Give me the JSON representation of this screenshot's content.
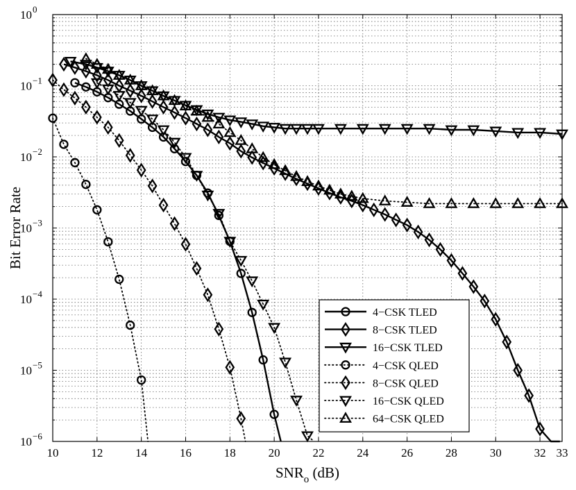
{
  "chart_data": {
    "type": "line",
    "title": "",
    "xlabel": "SNR",
    "xlabel_subscript": "o",
    "xlabel_unit": " (dB)",
    "ylabel": "Bit Error Rate",
    "xlim": [
      10,
      33
    ],
    "ylim": [
      1e-06,
      1
    ],
    "yscale": "log",
    "grid": true,
    "legend_position": "bottom-right",
    "x_ticks": [
      10,
      12,
      14,
      16,
      18,
      20,
      22,
      24,
      26,
      28,
      30,
      32,
      33
    ],
    "x_tick_labels": [
      "10",
      "12",
      "14",
      "16",
      "18",
      "20",
      "22",
      "24",
      "26",
      "28",
      "30",
      "32",
      "33"
    ],
    "y_tick_labels": [
      {
        "value": 1e-06,
        "base": "10",
        "exp": "−6"
      },
      {
        "value": 1e-05,
        "base": "10",
        "exp": "−5"
      },
      {
        "value": 0.0001,
        "base": "10",
        "exp": "−4"
      },
      {
        "value": 0.001,
        "base": "10",
        "exp": "−3"
      },
      {
        "value": 0.01,
        "base": "10",
        "exp": "−2"
      },
      {
        "value": 0.1,
        "base": "10",
        "exp": "−1"
      },
      {
        "value": 1,
        "base": "10",
        "exp": "0"
      }
    ],
    "series": [
      {
        "name": "4−CSK TLED",
        "marker": "circle",
        "line": "solid",
        "x": [
          11.0,
          11.5,
          12.0,
          12.5,
          13.0,
          13.5,
          14.0,
          14.5,
          15.0,
          15.5,
          16.0,
          16.5,
          17.0,
          17.5,
          18.0,
          18.5,
          19.0,
          19.5,
          20.0,
          20.3
        ],
        "y": [
          0.11,
          0.096,
          0.082,
          0.068,
          0.055,
          0.044,
          0.034,
          0.026,
          0.019,
          0.013,
          0.0086,
          0.0055,
          0.0031,
          0.0015,
          0.00065,
          0.00023,
          6.5e-05,
          1.4e-05,
          2.4e-06,
          1e-06
        ]
      },
      {
        "name": "8−CSK TLED",
        "marker": "diamond",
        "line": "solid",
        "x": [
          10.5,
          11.0,
          11.5,
          12.0,
          12.5,
          13.0,
          13.5,
          14.0,
          14.5,
          15.0,
          15.5,
          16.0,
          16.5,
          17.0,
          17.5,
          18.0,
          18.5,
          19.0,
          19.5,
          20.0,
          20.5,
          21.0,
          21.5,
          22.0,
          22.5,
          23.0,
          23.5,
          24.0,
          24.5,
          25.0,
          25.5,
          26.0,
          26.5,
          27.0,
          27.5,
          28.0,
          28.5,
          29.0,
          29.5,
          30.0,
          30.5,
          31.0,
          31.5,
          32.0,
          32.5,
          32.9
        ],
        "y": [
          0.2,
          0.18,
          0.16,
          0.14,
          0.12,
          0.1,
          0.085,
          0.072,
          0.06,
          0.05,
          0.042,
          0.035,
          0.029,
          0.024,
          0.019,
          0.0155,
          0.012,
          0.0098,
          0.0082,
          0.0069,
          0.0058,
          0.0049,
          0.0042,
          0.0036,
          0.0031,
          0.0027,
          0.0024,
          0.0021,
          0.0018,
          0.00155,
          0.0013,
          0.0011,
          0.00088,
          0.00068,
          0.0005,
          0.00035,
          0.00023,
          0.00015,
          9.4e-05,
          5.2e-05,
          2.5e-05,
          1e-05,
          4.4e-06,
          1.5e-06,
          1e-06,
          1e-06
        ]
      },
      {
        "name": "16−CSK TLED",
        "marker": "triangle-down",
        "line": "solid",
        "x": [
          10.8,
          11.5,
          12.0,
          12.5,
          13.0,
          13.5,
          14.0,
          14.5,
          15.0,
          15.5,
          16.0,
          16.5,
          17.0,
          17.5,
          18.0,
          18.5,
          19.0,
          19.5,
          20.0,
          20.5,
          21.0,
          21.5,
          22.0,
          23.0,
          24.0,
          25.0,
          26.0,
          27.0,
          28.0,
          29.0,
          30.0,
          31.0,
          32.0,
          33.0
        ],
        "y": [
          0.22,
          0.2,
          0.18,
          0.16,
          0.14,
          0.12,
          0.1,
          0.085,
          0.072,
          0.062,
          0.053,
          0.046,
          0.04,
          0.036,
          0.033,
          0.031,
          0.029,
          0.027,
          0.026,
          0.025,
          0.025,
          0.025,
          0.025,
          0.025,
          0.025,
          0.025,
          0.025,
          0.025,
          0.024,
          0.024,
          0.023,
          0.022,
          0.022,
          0.021
        ]
      },
      {
        "name": "4−CSK QLED",
        "marker": "circle",
        "line": "dotted",
        "x": [
          10.0,
          10.5,
          11.0,
          11.5,
          12.0,
          12.5,
          13.0,
          13.5,
          14.0,
          14.3
        ],
        "y": [
          0.035,
          0.015,
          0.0083,
          0.0041,
          0.0018,
          0.00064,
          0.00019,
          4.3e-05,
          7.3e-06,
          1e-06
        ]
      },
      {
        "name": "8−CSK QLED",
        "marker": "diamond",
        "line": "dotted",
        "x": [
          10.0,
          10.5,
          11.0,
          11.5,
          12.0,
          12.5,
          13.0,
          13.5,
          14.0,
          14.5,
          15.0,
          15.5,
          16.0,
          16.5,
          17.0,
          17.5,
          18.0,
          18.5,
          18.7
        ],
        "y": [
          0.12,
          0.088,
          0.067,
          0.05,
          0.036,
          0.026,
          0.017,
          0.0105,
          0.0065,
          0.0039,
          0.0021,
          0.00115,
          0.00059,
          0.00027,
          0.000115,
          3.8e-05,
          1.1e-05,
          2.1e-06,
          1e-06
        ]
      },
      {
        "name": "16−CSK QLED",
        "marker": "triangle-down",
        "line": "dotted",
        "x": [
          12.0,
          12.5,
          13.0,
          13.5,
          14.0,
          14.5,
          15.0,
          15.5,
          16.0,
          16.5,
          17.0,
          17.5,
          18.0,
          18.5,
          19.0,
          19.5,
          20.0,
          20.5,
          21.0,
          21.5,
          21.8
        ],
        "y": [
          0.11,
          0.09,
          0.073,
          0.058,
          0.045,
          0.034,
          0.024,
          0.016,
          0.0098,
          0.0055,
          0.0029,
          0.0016,
          0.00065,
          0.00035,
          0.00018,
          8.5e-05,
          4e-05,
          1.3e-05,
          3.8e-06,
          1.2e-06,
          1e-06
        ]
      },
      {
        "name": "64−CSK QLED",
        "marker": "triangle-up",
        "line": "dotted",
        "x": [
          11.5,
          12.0,
          12.5,
          13.0,
          13.5,
          14.0,
          14.5,
          15.0,
          15.5,
          16.0,
          16.5,
          17.0,
          17.5,
          18.0,
          18.5,
          19.0,
          19.5,
          20.0,
          20.5,
          21.0,
          21.5,
          22.0,
          22.5,
          23.0,
          23.5,
          24.0,
          25.0,
          26.0,
          27.0,
          28.0,
          29.0,
          30.0,
          31.0,
          32.0,
          33.0
        ],
        "y": [
          0.24,
          0.2,
          0.17,
          0.14,
          0.12,
          0.1,
          0.085,
          0.072,
          0.062,
          0.052,
          0.044,
          0.036,
          0.029,
          0.022,
          0.017,
          0.013,
          0.0098,
          0.0078,
          0.0064,
          0.0053,
          0.0045,
          0.0039,
          0.0034,
          0.003,
          0.0028,
          0.0026,
          0.0024,
          0.0023,
          0.0022,
          0.0022,
          0.0022,
          0.0022,
          0.0022,
          0.0022,
          0.0022
        ]
      }
    ]
  }
}
